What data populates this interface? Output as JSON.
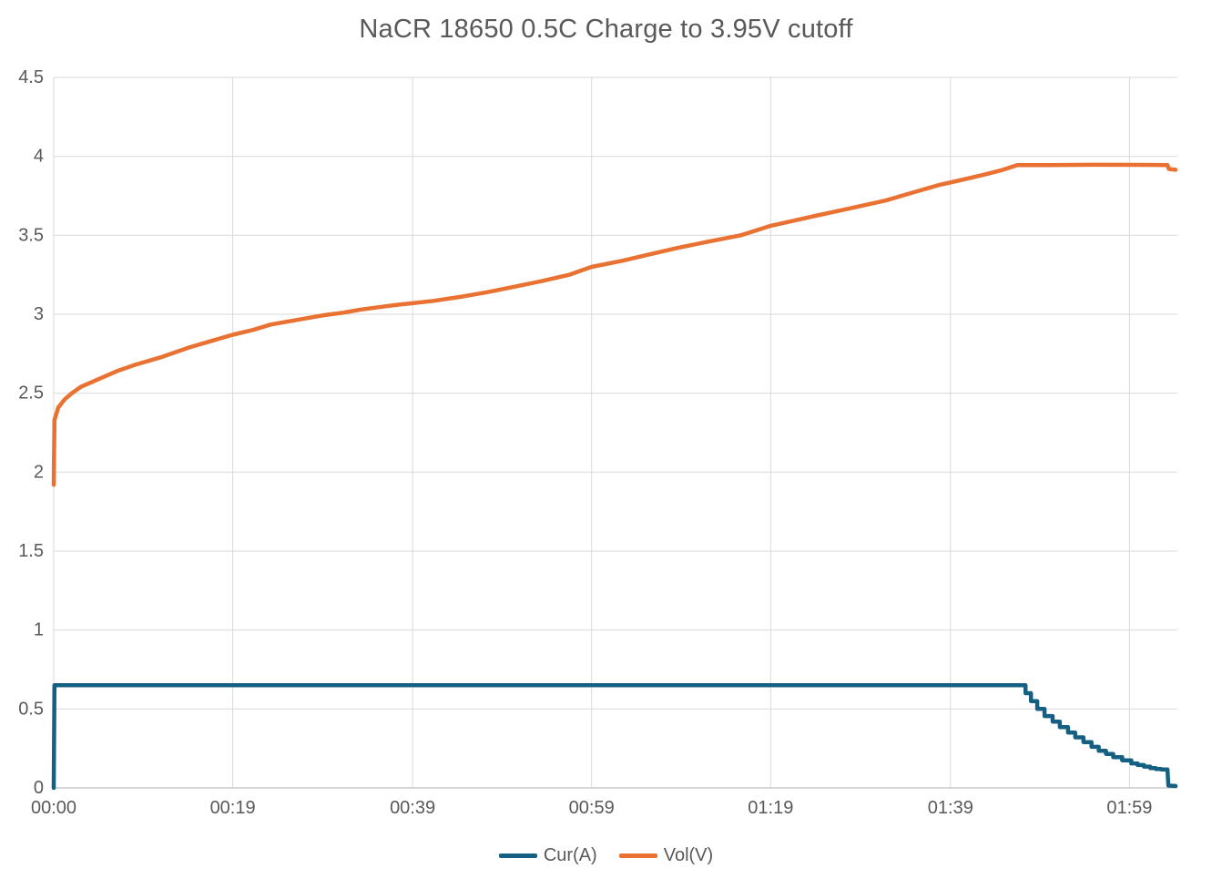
{
  "colors": {
    "background": "#ffffff",
    "gridline": "#d9d9d9",
    "axis_line": "#bfbfbf",
    "axis_text": "#595959",
    "title_text": "#595959",
    "current_series": "#156082",
    "voltage_series": "#e97132"
  },
  "chart_data": {
    "type": "line",
    "title": "NaCR 18650 0.5C Charge to 3.95V cutoff",
    "xlabel": "",
    "ylabel": "",
    "x_unit": "time_minutes",
    "xlim": [
      0,
      124.3
    ],
    "ylim": [
      0,
      4.5
    ],
    "grid": true,
    "legend_position": "bottom",
    "x_ticks": [
      {
        "t": 0,
        "label": "00:00"
      },
      {
        "t": 19.8,
        "label": "00:19"
      },
      {
        "t": 39.7,
        "label": "00:39"
      },
      {
        "t": 59.5,
        "label": "00:59"
      },
      {
        "t": 79.3,
        "label": "01:19"
      },
      {
        "t": 99.2,
        "label": "01:39"
      },
      {
        "t": 119.0,
        "label": "01:59"
      }
    ],
    "y_ticks": [
      0,
      0.5,
      1,
      1.5,
      2,
      2.5,
      3,
      3.5,
      4,
      4.5
    ],
    "series": [
      {
        "id": "cur",
        "name": "Cur(A)",
        "color": "#156082",
        "description": "Charge current, amps: constant 0.65 A until ~01:47, then CV taper to ~0.11 A, cutoff to 0 at ~02:03",
        "segments": [
          {
            "mode": "line",
            "points": [
              [
                0,
                0
              ],
              [
                0.08,
                0.65
              ],
              [
                20,
                0.65
              ],
              [
                40,
                0.65
              ],
              [
                60,
                0.65
              ],
              [
                80,
                0.65
              ],
              [
                100,
                0.65
              ],
              [
                106.8,
                0.65
              ]
            ]
          },
          {
            "mode": "step",
            "points": [
              [
                107.5,
                0.6
              ],
              [
                108.1,
                0.55
              ],
              [
                108.8,
                0.5
              ],
              [
                109.6,
                0.455
              ],
              [
                110.5,
                0.42
              ],
              [
                111.3,
                0.385
              ],
              [
                112.2,
                0.35
              ],
              [
                113.0,
                0.32
              ],
              [
                113.9,
                0.29
              ],
              [
                114.8,
                0.26
              ],
              [
                115.6,
                0.235
              ],
              [
                116.4,
                0.215
              ],
              [
                117.2,
                0.195
              ],
              [
                118.2,
                0.175
              ],
              [
                119.2,
                0.155
              ],
              [
                119.9,
                0.145
              ],
              [
                120.6,
                0.135
              ],
              [
                121.3,
                0.125
              ],
              [
                121.9,
                0.12
              ],
              [
                122.5,
                0.117
              ],
              [
                123.2,
                0.115
              ]
            ]
          },
          {
            "mode": "line",
            "points": [
              [
                123.3,
                0.015
              ],
              [
                124.1,
                0.012
              ]
            ]
          }
        ]
      },
      {
        "id": "vol",
        "name": "Vol(V)",
        "color": "#e97132",
        "description": "Cell voltage, volts: jumps 1.92->2.35 at start, rises to 3.95 plateau at ~01:47, small drop to ~3.91 at end",
        "segments": [
          {
            "mode": "line",
            "points": [
              [
                0,
                1.92
              ],
              [
                0.08,
                2.33
              ],
              [
                0.5,
                2.41
              ],
              [
                1.2,
                2.46
              ],
              [
                2,
                2.5
              ],
              [
                3,
                2.54
              ],
              [
                5,
                2.59
              ],
              [
                7,
                2.64
              ],
              [
                9,
                2.68
              ],
              [
                12,
                2.73
              ],
              [
                15,
                2.79
              ],
              [
                18,
                2.84
              ],
              [
                19.8,
                2.87
              ],
              [
                22,
                2.9
              ],
              [
                24,
                2.935
              ],
              [
                26,
                2.955
              ],
              [
                28,
                2.975
              ],
              [
                30,
                2.995
              ],
              [
                32,
                3.01
              ],
              [
                34,
                3.03
              ],
              [
                36,
                3.045
              ],
              [
                38,
                3.06
              ],
              [
                39.7,
                3.07
              ],
              [
                42,
                3.085
              ],
              [
                45,
                3.11
              ],
              [
                48,
                3.14
              ],
              [
                51,
                3.175
              ],
              [
                54,
                3.21
              ],
              [
                57,
                3.25
              ],
              [
                59.5,
                3.3
              ],
              [
                63,
                3.34
              ],
              [
                66,
                3.38
              ],
              [
                69,
                3.42
              ],
              [
                72,
                3.455
              ],
              [
                76,
                3.5
              ],
              [
                79.3,
                3.56
              ],
              [
                84,
                3.62
              ],
              [
                88,
                3.67
              ],
              [
                92,
                3.72
              ],
              [
                95,
                3.77
              ],
              [
                98,
                3.82
              ],
              [
                100,
                3.845
              ],
              [
                103,
                3.885
              ],
              [
                105,
                3.915
              ],
              [
                106.6,
                3.945
              ],
              [
                110,
                3.945
              ],
              [
                115,
                3.947
              ],
              [
                120,
                3.946
              ],
              [
                123.2,
                3.945
              ]
            ]
          },
          {
            "mode": "line",
            "points": [
              [
                123.35,
                3.92
              ],
              [
                124.1,
                3.915
              ]
            ]
          }
        ]
      }
    ]
  },
  "legend": {
    "items": [
      {
        "label": "Cur(A)"
      },
      {
        "label": "Vol(V)"
      }
    ]
  }
}
